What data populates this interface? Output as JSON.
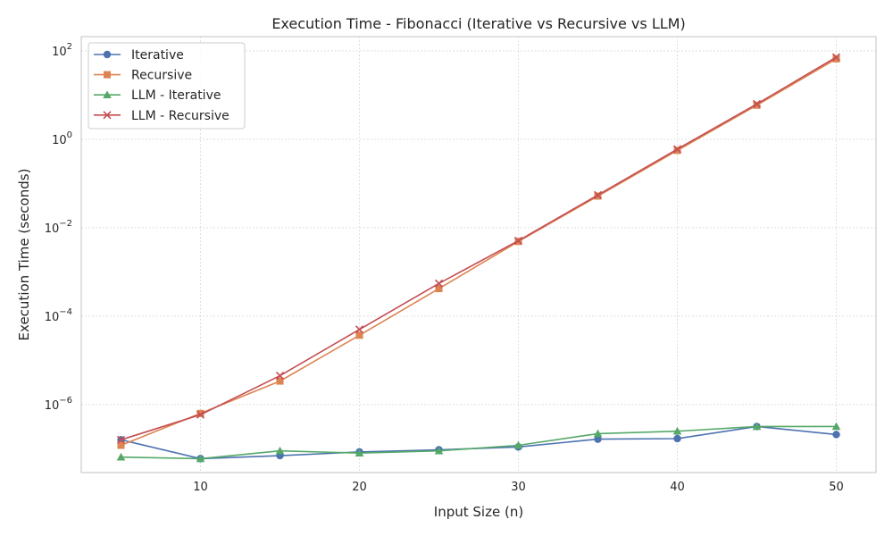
{
  "chart_data": {
    "type": "line",
    "title": "Execution Time - Fibonacci (Iterative vs Recursive vs LLM)",
    "xlabel": "Input Size (n)",
    "ylabel": "Execution Time (seconds)",
    "x": [
      5,
      10,
      15,
      20,
      25,
      30,
      35,
      40,
      45,
      50
    ],
    "xlim": [
      2.5,
      52.5
    ],
    "ylim": [
      2.9e-08,
      210
    ],
    "yscale": "log",
    "grid": true,
    "legend_position": "top-left",
    "xticks": [
      {
        "value": 10,
        "label": "10"
      },
      {
        "value": 20,
        "label": "20"
      },
      {
        "value": 30,
        "label": "30"
      },
      {
        "value": 40,
        "label": "40"
      },
      {
        "value": 50,
        "label": "50"
      }
    ],
    "yticks": [
      {
        "value": 1e-06,
        "base": "10",
        "exp": "−6"
      },
      {
        "value": 0.0001,
        "base": "10",
        "exp": "−4"
      },
      {
        "value": 0.01,
        "base": "10",
        "exp": "−2"
      },
      {
        "value": 1,
        "base": "10",
        "exp": "0"
      },
      {
        "value": 100,
        "base": "10",
        "exp": "2"
      }
    ],
    "series": [
      {
        "name": "Iterative",
        "color": "#4c72b0",
        "marker": "circle",
        "values": [
          1.6e-07,
          6e-08,
          7e-08,
          8.5e-08,
          9.5e-08,
          1.1e-07,
          1.65e-07,
          1.7e-07,
          3.2e-07,
          2.1e-07
        ]
      },
      {
        "name": "Recursive",
        "color": "#dd8452",
        "marker": "square",
        "values": [
          1.2e-07,
          6.3e-07,
          3.4e-06,
          3.7e-05,
          0.00042,
          0.0049,
          0.052,
          0.56,
          5.9,
          66
        ]
      },
      {
        "name": "LLM - Iterative",
        "color": "#55a868",
        "marker": "triangle",
        "values": [
          6.5e-08,
          6e-08,
          9e-08,
          8e-08,
          9e-08,
          1.2e-07,
          2.2e-07,
          2.5e-07,
          3.2e-07,
          3.2e-07
        ]
      },
      {
        "name": "LLM - Recursive",
        "color": "#c44e52",
        "marker": "x",
        "values": [
          1.6e-07,
          5.9e-07,
          4.5e-06,
          5e-05,
          0.00055,
          0.0051,
          0.055,
          0.6,
          6.3,
          72
        ]
      }
    ]
  }
}
